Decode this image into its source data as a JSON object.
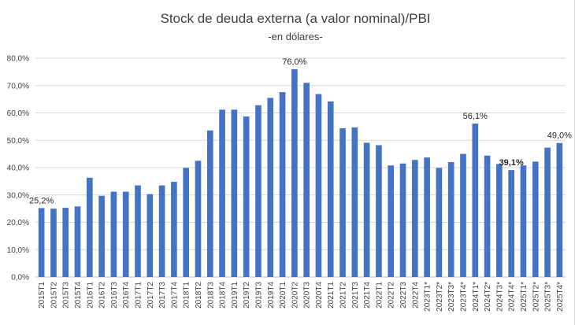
{
  "chart_data": {
    "type": "bar",
    "title": "Stock de deuda externa (a valor nominal)/PBI",
    "subtitle": "-en dólares-",
    "xlabel": "",
    "ylabel": "",
    "ylim": [
      0,
      80
    ],
    "y_ticks": [
      "0,0%",
      "10,0%",
      "20,0%",
      "30,0%",
      "40,0%",
      "50,0%",
      "60,0%",
      "70,0%",
      "80,0%"
    ],
    "grid": "horizontal",
    "bar_color": "#4472c4",
    "categories": [
      "2015T1",
      "2015T2",
      "2015T3",
      "2015T4",
      "2016T1",
      "2016T2",
      "2016T3",
      "2016T4",
      "2017T1",
      "2017T2",
      "2017T3",
      "2017T4",
      "2018T1",
      "2018T2",
      "2018T3",
      "2018T4",
      "2019T1",
      "2019T2",
      "2019T3",
      "2019T4",
      "2020T1",
      "2020T2",
      "2020T3",
      "2020T4",
      "2021T1",
      "2021T2",
      "2021T3",
      "2021T4",
      "2022T1",
      "2022T2",
      "2022T3",
      "2022T4",
      "2023T1*",
      "2023T2*",
      "2023T3*",
      "2023T4*",
      "2024T1*",
      "2024T2*",
      "2024T3*",
      "2024T4*",
      "2025T1*",
      "2025T2*",
      "2025T3*",
      "2025T4*"
    ],
    "values": [
      25.2,
      25.0,
      25.3,
      25.8,
      36.3,
      29.7,
      31.2,
      31.2,
      33.5,
      30.3,
      33.5,
      34.8,
      39.9,
      42.5,
      53.6,
      61.2,
      61.2,
      58.7,
      62.8,
      65.5,
      67.6,
      76.0,
      71.0,
      66.9,
      64.2,
      54.4,
      54.7,
      49.1,
      48.2,
      40.8,
      41.5,
      42.8,
      43.7,
      39.9,
      42.0,
      45.0,
      56.1,
      44.4,
      41.3,
      39.1,
      40.8,
      42.2,
      47.3,
      49.0
    ],
    "data_labels": [
      {
        "index": 0,
        "text": "25,2%"
      },
      {
        "index": 21,
        "text": "76,0%"
      },
      {
        "index": 36,
        "text": "56,1%"
      },
      {
        "index": 39,
        "text": "39,1%",
        "bold": true
      },
      {
        "index": 43,
        "text": "49,0%"
      }
    ]
  }
}
